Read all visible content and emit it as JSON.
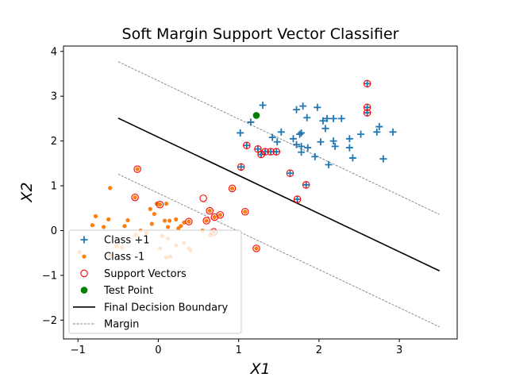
{
  "chart_data": {
    "type": "scatter",
    "title": "Soft Margin Support Vector Classifier",
    "xlabel": "X1",
    "ylabel": "X2",
    "xlim": [
      -1.18,
      3.72
    ],
    "ylim": [
      -2.42,
      4.12
    ],
    "xticks": [
      -1,
      0,
      1,
      2,
      3
    ],
    "yticks": [
      -2,
      -1,
      0,
      1,
      2,
      3,
      4
    ],
    "grid": false,
    "legend_position": "lower-left",
    "colors": {
      "class_pos": "#1f77b4",
      "class_neg": "#ff7f0e",
      "support_vector": "#ff0000",
      "test_point": "#008000",
      "boundary": "#000000",
      "margin": "#808080"
    },
    "series": [
      {
        "name": "Class +1",
        "marker": "plus",
        "points": [
          [
            1.3,
            2.8
          ],
          [
            1.8,
            2.78
          ],
          [
            1.98,
            2.75
          ],
          [
            1.72,
            2.7
          ],
          [
            1.85,
            2.52
          ],
          [
            2.1,
            2.5
          ],
          [
            2.05,
            2.45
          ],
          [
            2.18,
            2.5
          ],
          [
            2.28,
            2.5
          ],
          [
            1.15,
            2.42
          ],
          [
            2.08,
            2.28
          ],
          [
            1.02,
            2.18
          ],
          [
            1.53,
            2.2
          ],
          [
            1.78,
            2.18
          ],
          [
            1.76,
            2.15
          ],
          [
            2.75,
            2.32
          ],
          [
            2.72,
            2.2
          ],
          [
            2.92,
            2.2
          ],
          [
            1.42,
            2.08
          ],
          [
            1.48,
            1.98
          ],
          [
            1.68,
            2.05
          ],
          [
            2.52,
            2.15
          ],
          [
            2.38,
            2.05
          ],
          [
            2.02,
            1.98
          ],
          [
            2.18,
            2.0
          ],
          [
            1.72,
            1.92
          ],
          [
            1.78,
            1.88
          ],
          [
            1.86,
            1.85
          ],
          [
            2.2,
            1.88
          ],
          [
            2.38,
            1.85
          ],
          [
            1.78,
            1.75
          ],
          [
            1.95,
            1.65
          ],
          [
            2.42,
            1.62
          ],
          [
            2.8,
            1.6
          ],
          [
            2.12,
            1.47
          ],
          [
            1.1,
            1.9
          ],
          [
            1.24,
            1.82
          ],
          [
            1.28,
            1.7
          ],
          [
            1.33,
            1.76
          ],
          [
            1.4,
            1.76
          ],
          [
            1.47,
            1.76
          ],
          [
            1.64,
            1.28
          ],
          [
            1.84,
            1.02
          ],
          [
            1.73,
            0.7
          ],
          [
            1.03,
            1.42
          ],
          [
            2.6,
            3.28
          ],
          [
            2.6,
            2.75
          ],
          [
            2.6,
            2.63
          ]
        ]
      },
      {
        "name": "Class -1",
        "marker": "dot",
        "points": [
          [
            -0.6,
            0.95
          ],
          [
            -0.78,
            0.32
          ],
          [
            -0.62,
            0.25
          ],
          [
            -0.38,
            0.23
          ],
          [
            -0.1,
            0.48
          ],
          [
            -0.05,
            0.37
          ],
          [
            -0.02,
            0.6
          ],
          [
            0.1,
            0.6
          ],
          [
            -0.82,
            0.12
          ],
          [
            -0.68,
            0.08
          ],
          [
            -0.42,
            0.1
          ],
          [
            -0.22,
            0.0
          ],
          [
            -0.08,
            0.15
          ],
          [
            0.08,
            0.22
          ],
          [
            0.14,
            0.22
          ],
          [
            0.22,
            0.25
          ],
          [
            0.12,
            0.08
          ],
          [
            0.28,
            0.1
          ],
          [
            0.32,
            0.18
          ],
          [
            -0.15,
            -0.05
          ],
          [
            0.05,
            -0.12
          ],
          [
            0.12,
            -0.18
          ],
          [
            0.22,
            -0.33
          ],
          [
            0.32,
            -0.28
          ],
          [
            0.38,
            -0.4
          ],
          [
            0.4,
            -0.44
          ],
          [
            0.65,
            -0.1
          ],
          [
            0.55,
            0.0
          ],
          [
            -0.52,
            -0.35
          ],
          [
            -0.45,
            -0.38
          ],
          [
            -0.98,
            -0.48
          ],
          [
            -0.6,
            -0.55
          ],
          [
            0.02,
            -0.4
          ],
          [
            0.1,
            -0.6
          ],
          [
            0.15,
            -0.58
          ],
          [
            -0.28,
            -0.1
          ],
          [
            0.25,
            0.05
          ],
          [
            -0.26,
            1.37
          ],
          [
            -0.29,
            0.74
          ],
          [
            0.02,
            0.58
          ],
          [
            0.38,
            0.2
          ],
          [
            0.6,
            0.22
          ],
          [
            0.64,
            0.44
          ],
          [
            0.7,
            0.3
          ],
          [
            0.77,
            0.35
          ],
          [
            0.69,
            -0.03
          ],
          [
            0.92,
            0.94
          ],
          [
            1.08,
            0.42
          ],
          [
            1.22,
            -0.4
          ]
        ]
      },
      {
        "name": "Support Vectors",
        "marker": "open-circle",
        "points": [
          [
            -0.26,
            1.37
          ],
          [
            -0.29,
            0.74
          ],
          [
            0.02,
            0.58
          ],
          [
            0.38,
            0.2
          ],
          [
            0.56,
            0.72
          ],
          [
            0.6,
            0.22
          ],
          [
            0.64,
            0.44
          ],
          [
            0.7,
            0.3
          ],
          [
            0.77,
            0.35
          ],
          [
            0.69,
            -0.03
          ],
          [
            0.92,
            0.94
          ],
          [
            1.08,
            0.42
          ],
          [
            1.22,
            -0.4
          ],
          [
            1.03,
            1.42
          ],
          [
            1.1,
            1.9
          ],
          [
            1.24,
            1.82
          ],
          [
            1.28,
            1.7
          ],
          [
            1.33,
            1.76
          ],
          [
            1.4,
            1.76
          ],
          [
            1.47,
            1.76
          ],
          [
            1.64,
            1.28
          ],
          [
            1.84,
            1.02
          ],
          [
            1.73,
            0.7
          ],
          [
            2.6,
            3.28
          ],
          [
            2.6,
            2.75
          ],
          [
            2.6,
            2.63
          ]
        ]
      },
      {
        "name": "Test Point",
        "marker": "filled-circle",
        "points": [
          [
            1.22,
            2.57
          ]
        ]
      }
    ],
    "lines": [
      {
        "name": "Final Decision Boundary",
        "style": "solid",
        "points": [
          [
            -0.5,
            2.51
          ],
          [
            3.5,
            -0.9
          ]
        ]
      },
      {
        "name": "Margin",
        "style": "dashed",
        "points": [
          [
            -0.5,
            3.77
          ],
          [
            3.5,
            0.36
          ]
        ]
      },
      {
        "name": "",
        "style": "dashed",
        "points": [
          [
            -0.5,
            1.26
          ],
          [
            3.5,
            -2.15
          ]
        ]
      }
    ]
  }
}
